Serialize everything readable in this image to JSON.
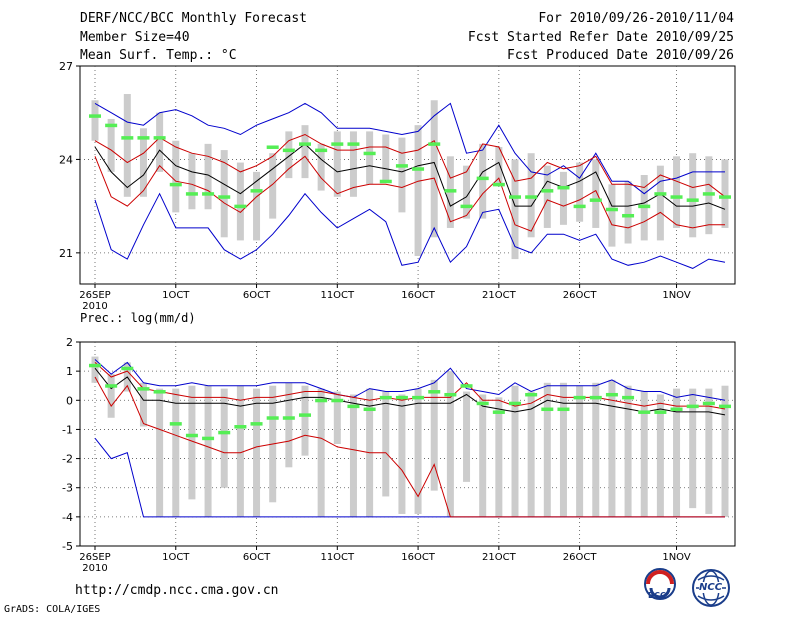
{
  "header": {
    "title": "DERF/NCC/BCC Monthly Forecast",
    "member_size": "Member Size=40",
    "variable": "Mean Surf. Temp.: °C",
    "period": "For 2010/09/26-2010/11/04",
    "refer_date": "Fcst Started Refer Date 2010/09/25",
    "produced_date": "Fcst Produced Date 2010/09/26"
  },
  "footer": {
    "url": "http://cmdp.ncc.cma.gov.cn",
    "credit": "GrADS: COLA/IGES",
    "logo_bcc": "BCC",
    "logo_ncc": "NCC"
  },
  "colors": {
    "box": "#cccccc",
    "median": "#55ee55",
    "envelope": "#0000cc",
    "spread": "#cc0000",
    "mean": "#000000",
    "grid": "#555555"
  },
  "chart_data": [
    {
      "type": "line",
      "title": "Mean Surf. Temp.: °C",
      "x_tick_labels": [
        "26SEP",
        "1OCT",
        "6OCT",
        "11OCT",
        "16OCT",
        "21OCT",
        "26OCT",
        "1NOV"
      ],
      "x_tick_days": [
        1,
        6,
        11,
        16,
        21,
        26,
        31,
        37
      ],
      "x_sublabel": "2010",
      "days": 40,
      "ylim": [
        20,
        27
      ],
      "y_ticks": [
        21,
        24,
        27
      ],
      "mean": [
        24.4,
        23.6,
        23.1,
        23.5,
        24.3,
        23.8,
        23.6,
        23.5,
        23.2,
        22.9,
        23.3,
        23.7,
        24.1,
        24.5,
        24.0,
        23.6,
        23.7,
        23.8,
        23.7,
        23.6,
        23.8,
        23.9,
        22.5,
        22.8,
        23.6,
        23.9,
        22.5,
        22.5,
        23.3,
        23.1,
        23.3,
        23.6,
        22.5,
        22.5,
        22.6,
        22.9,
        22.5,
        22.5,
        22.6,
        22.4
      ],
      "upper_spread": [
        24.6,
        24.3,
        23.9,
        24.2,
        24.7,
        24.4,
        24.2,
        24.1,
        23.9,
        23.6,
        23.8,
        24.1,
        24.6,
        24.8,
        24.5,
        24.3,
        24.3,
        24.4,
        24.4,
        24.2,
        24.3,
        24.6,
        23.4,
        23.6,
        24.5,
        24.4,
        23.3,
        23.4,
        23.9,
        23.7,
        23.8,
        24.1,
        23.2,
        23.2,
        23.1,
        23.5,
        23.3,
        23.1,
        23.2,
        22.8
      ],
      "lower_spread": [
        24.1,
        22.8,
        22.5,
        23.0,
        23.8,
        23.3,
        23.2,
        23.0,
        22.6,
        22.3,
        22.8,
        23.2,
        23.7,
        24.1,
        23.4,
        22.9,
        23.1,
        23.2,
        23.2,
        23.1,
        23.3,
        23.4,
        22.0,
        22.2,
        22.9,
        23.4,
        21.9,
        21.7,
        22.7,
        22.5,
        22.7,
        23.0,
        21.9,
        21.8,
        22.0,
        22.3,
        21.9,
        21.8,
        21.9,
        21.9
      ],
      "max": [
        25.8,
        25.5,
        25.2,
        25.1,
        25.5,
        25.6,
        25.4,
        25.1,
        25.0,
        24.8,
        25.1,
        25.3,
        25.5,
        25.8,
        25.5,
        25.0,
        25.0,
        25.0,
        24.9,
        24.8,
        24.9,
        25.4,
        25.8,
        24.2,
        24.3,
        25.1,
        24.2,
        23.6,
        23.5,
        23.8,
        23.4,
        24.2,
        23.3,
        23.3,
        22.9,
        23.3,
        23.4,
        23.6,
        23.6,
        23.6
      ],
      "min": [
        22.7,
        21.1,
        20.8,
        21.9,
        22.9,
        21.8,
        21.8,
        21.8,
        21.1,
        20.8,
        21.1,
        21.6,
        22.2,
        22.9,
        22.3,
        21.8,
        22.1,
        22.4,
        22.0,
        20.6,
        20.7,
        21.8,
        20.7,
        21.2,
        22.3,
        22.4,
        21.2,
        21.0,
        21.6,
        21.6,
        21.4,
        21.6,
        20.8,
        20.6,
        20.7,
        20.9,
        20.7,
        20.5,
        20.8,
        20.7
      ],
      "box_top": [
        25.9,
        25.3,
        26.1,
        25.0,
        25.5,
        24.6,
        24.2,
        24.5,
        24.3,
        23.9,
        23.6,
        24.2,
        24.9,
        25.1,
        24.5,
        24.9,
        24.9,
        24.9,
        24.8,
        24.7,
        25.1,
        25.9,
        24.1,
        23.8,
        24.5,
        24.4,
        24.0,
        24.2,
        23.8,
        23.6,
        23.9,
        24.0,
        23.2,
        23.3,
        23.5,
        23.8,
        24.1,
        24.2,
        24.1,
        24.0
      ],
      "box_bottom": [
        24.6,
        23.6,
        22.8,
        22.8,
        23.6,
        22.3,
        22.4,
        22.4,
        21.5,
        21.4,
        21.4,
        22.1,
        23.4,
        23.4,
        23.0,
        22.8,
        22.8,
        23.2,
        23.3,
        22.3,
        20.9,
        21.5,
        21.8,
        22.1,
        22.1,
        23.2,
        20.8,
        21.5,
        21.8,
        21.9,
        22.0,
        21.8,
        21.2,
        21.3,
        21.4,
        21.4,
        21.8,
        21.5,
        21.6,
        21.8
      ],
      "median": [
        25.4,
        25.1,
        24.7,
        24.7,
        24.7,
        23.2,
        22.9,
        22.9,
        22.8,
        22.5,
        23.0,
        24.4,
        24.3,
        24.5,
        24.3,
        24.5,
        24.5,
        24.2,
        23.3,
        23.8,
        23.7,
        24.5,
        23.0,
        22.5,
        23.4,
        23.2,
        22.8,
        22.8,
        23.0,
        23.1,
        22.5,
        22.7,
        22.4,
        22.2,
        22.5,
        22.9,
        22.8,
        22.7,
        22.9,
        22.8
      ]
    },
    {
      "type": "line",
      "title": "Prec.: log(mm/d)",
      "x_tick_labels": [
        "26SEP",
        "1OCT",
        "6OCT",
        "11OCT",
        "16OCT",
        "21OCT",
        "26OCT",
        "1NOV"
      ],
      "x_tick_days": [
        1,
        6,
        11,
        16,
        21,
        26,
        31,
        37
      ],
      "x_sublabel": "2010",
      "days": 40,
      "ylim": [
        -5,
        2
      ],
      "y_ticks": [
        -5,
        -4,
        -3,
        -2,
        -1,
        0,
        1,
        2
      ],
      "mean": [
        1.1,
        0.4,
        0.8,
        0.0,
        0.0,
        -0.1,
        -0.1,
        -0.1,
        -0.1,
        -0.2,
        -0.1,
        -0.1,
        0.0,
        0.1,
        0.1,
        0.0,
        -0.1,
        -0.2,
        -0.1,
        -0.2,
        -0.1,
        -0.1,
        -0.1,
        0.2,
        -0.2,
        -0.3,
        -0.4,
        -0.3,
        0.0,
        -0.1,
        -0.1,
        -0.1,
        -0.2,
        -0.3,
        -0.4,
        -0.3,
        -0.4,
        -0.4,
        -0.4,
        -0.5
      ],
      "upper_spread": [
        1.3,
        0.8,
        1.0,
        0.4,
        0.3,
        0.2,
        0.1,
        0.1,
        0.1,
        0.0,
        0.1,
        0.1,
        0.2,
        0.3,
        0.3,
        0.2,
        0.1,
        0.0,
        0.1,
        0.0,
        0.1,
        0.1,
        0.1,
        0.6,
        0.0,
        0.0,
        -0.2,
        -0.1,
        0.2,
        0.1,
        0.1,
        0.1,
        0.0,
        -0.1,
        -0.2,
        -0.1,
        -0.2,
        -0.2,
        -0.2,
        -0.3
      ],
      "lower_spread": [
        0.8,
        -0.2,
        0.5,
        -0.8,
        -1.0,
        -1.2,
        -1.4,
        -1.6,
        -1.8,
        -1.8,
        -1.6,
        -1.5,
        -1.4,
        -1.2,
        -1.3,
        -1.6,
        -1.7,
        -1.8,
        -1.8,
        -2.4,
        -3.3,
        -2.2,
        -4.0,
        -4.0,
        -4.0,
        -4.0,
        -4.0,
        -4.0,
        -4.0,
        -4.0,
        -4.0,
        -4.0,
        -4.0,
        -4.0,
        -4.0,
        -4.0,
        -4.0,
        -4.0,
        -4.0,
        -4.0
      ],
      "max": [
        1.4,
        0.9,
        1.3,
        0.6,
        0.5,
        0.5,
        0.6,
        0.5,
        0.5,
        0.5,
        0.5,
        0.6,
        0.6,
        0.6,
        0.4,
        0.2,
        0.1,
        0.4,
        0.3,
        0.3,
        0.4,
        0.6,
        1.1,
        0.4,
        0.3,
        0.2,
        0.6,
        0.3,
        0.5,
        0.5,
        0.5,
        0.5,
        0.7,
        0.4,
        0.3,
        0.3,
        0.1,
        0.2,
        0.1,
        0.0
      ],
      "min": [
        -1.3,
        -2.0,
        -1.8,
        -4.0,
        -4.0,
        -4.0,
        -4.0,
        -4.0,
        -4.0,
        -4.0,
        -4.0,
        -4.0,
        -4.0,
        -4.0,
        -4.0,
        -4.0,
        -4.0,
        -4.0,
        -4.0,
        -4.0,
        -4.0,
        -4.0,
        -4.0,
        -4.0,
        -4.0,
        -4.0,
        -4.0,
        -4.0,
        -4.0,
        -4.0,
        -4.0,
        -4.0,
        -4.0,
        -4.0,
        -4.0,
        -4.0,
        -4.0,
        -4.0,
        -4.0,
        -4.0
      ],
      "box_top": [
        1.5,
        0.9,
        1.3,
        0.6,
        0.4,
        0.4,
        0.5,
        0.5,
        0.4,
        0.5,
        0.4,
        0.5,
        0.6,
        0.5,
        0.4,
        0.3,
        0.2,
        0.4,
        0.3,
        0.2,
        0.4,
        0.7,
        1.0,
        0.3,
        0.2,
        0.1,
        0.5,
        0.3,
        0.6,
        0.6,
        0.5,
        0.6,
        0.7,
        0.5,
        0.3,
        0.2,
        0.4,
        0.4,
        0.4,
        0.5
      ],
      "box_bottom": [
        0.6,
        -0.6,
        0.3,
        -0.9,
        -4.0,
        -4.0,
        -3.4,
        -4.0,
        -3.0,
        -4.0,
        -4.0,
        -3.5,
        -2.3,
        -1.9,
        -4.0,
        -1.5,
        -4.0,
        -4.0,
        -3.3,
        -3.9,
        -3.9,
        -3.1,
        -4.0,
        -2.8,
        -4.0,
        -4.0,
        -4.0,
        -4.0,
        -4.0,
        -4.0,
        -4.0,
        -4.0,
        -4.0,
        -4.0,
        -4.0,
        -4.0,
        -4.0,
        -3.7,
        -3.9,
        -4.0
      ],
      "median": [
        1.2,
        0.5,
        1.1,
        0.4,
        0.3,
        -0.8,
        -1.2,
        -1.3,
        -1.1,
        -0.9,
        -0.8,
        -0.6,
        -0.6,
        -0.5,
        0.0,
        0.0,
        -0.2,
        -0.3,
        0.1,
        0.1,
        0.1,
        0.3,
        0.2,
        0.5,
        -0.1,
        -0.4,
        -0.1,
        0.2,
        -0.3,
        -0.3,
        0.1,
        0.1,
        0.2,
        0.1,
        -0.4,
        -0.4,
        -0.3,
        -0.2,
        -0.1,
        -0.2
      ]
    }
  ]
}
